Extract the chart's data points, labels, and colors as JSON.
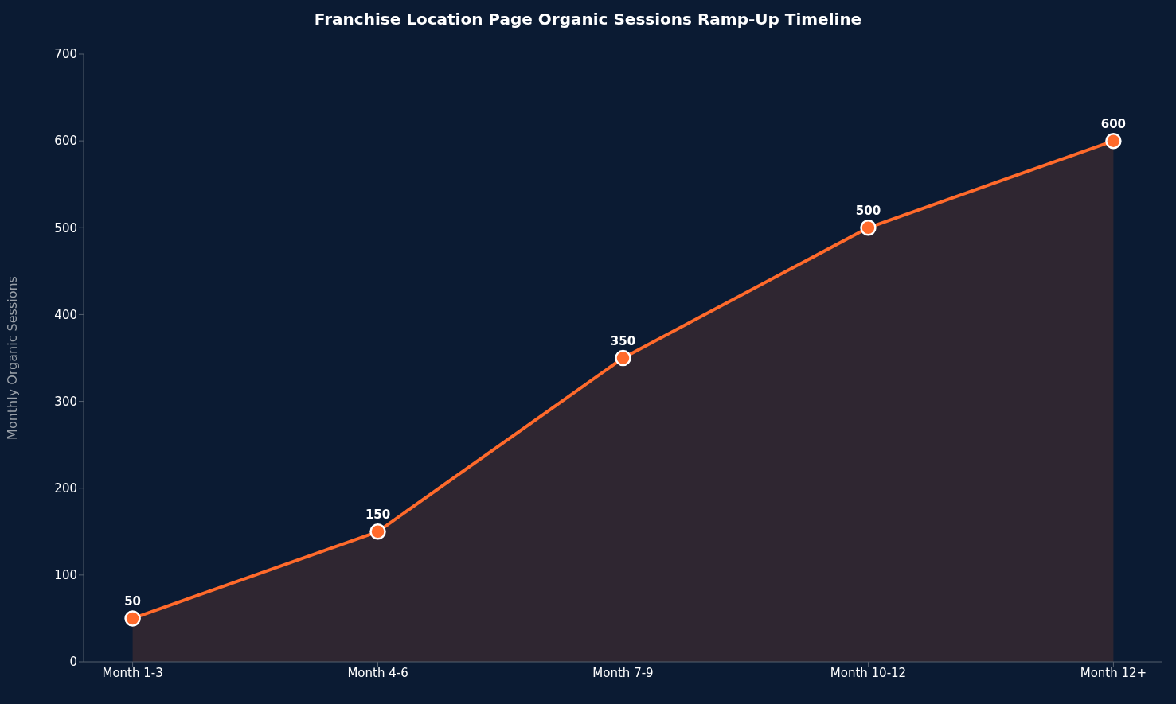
{
  "chart_data": {
    "type": "area",
    "title": "Franchise Location Page Organic Sessions Ramp-Up Timeline",
    "ylabel": "Monthly Organic Sessions",
    "categories": [
      "Month 1-3",
      "Month 4-6",
      "Month 7-9",
      "Month 10-12",
      "Month 12+"
    ],
    "series": [
      {
        "color": "#ff6a2b",
        "values": [
          50,
          150,
          350,
          500,
          600
        ]
      }
    ],
    "ylim": [
      0,
      700
    ],
    "yticks": [
      0,
      100,
      200,
      300,
      400,
      500,
      600,
      700
    ],
    "grid": false,
    "legend": false,
    "marker": "circle",
    "line_style": "solid",
    "data_labels": true
  }
}
